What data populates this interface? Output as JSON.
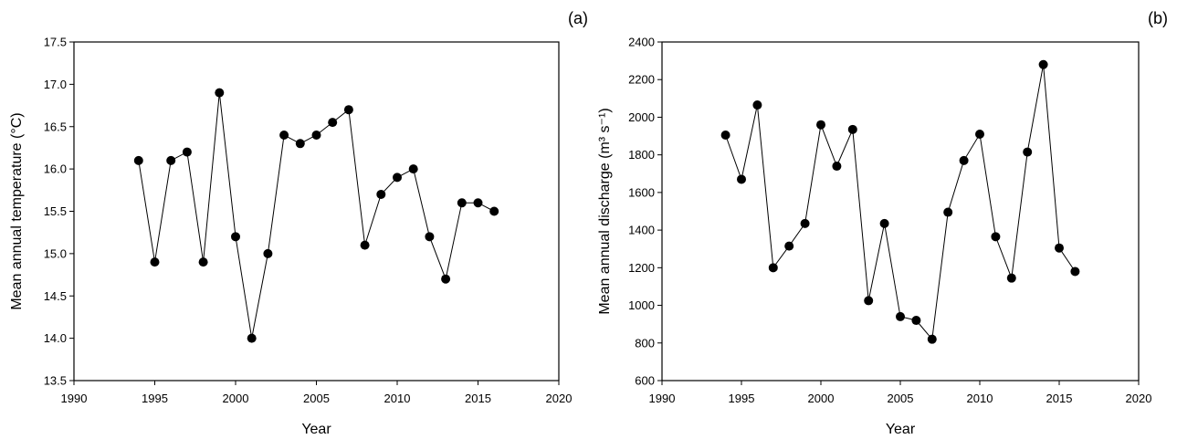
{
  "chart_data": [
    {
      "type": "line",
      "panel_label": "(a)",
      "xlabel": "Year",
      "ylabel": "Mean annual temperature (°C)",
      "xlim": [
        1990,
        2020
      ],
      "ylim": [
        13.5,
        17.5
      ],
      "xticks": [
        1990,
        1995,
        2000,
        2005,
        2010,
        2015,
        2020
      ],
      "yticks": [
        "13.5",
        "14.0",
        "14.5",
        "15.0",
        "15.5",
        "16.0",
        "16.5",
        "17.0",
        "17.5"
      ],
      "grid": false,
      "legend": "none",
      "marker": "filled-circle",
      "x": [
        1994,
        1995,
        1996,
        1997,
        1998,
        1999,
        2000,
        2001,
        2002,
        2003,
        2004,
        2005,
        2006,
        2007,
        2008,
        2009,
        2010,
        2011,
        2012,
        2013,
        2014,
        2015,
        2016
      ],
      "y": [
        16.1,
        14.9,
        16.1,
        16.2,
        14.9,
        16.9,
        15.2,
        14.0,
        15.0,
        16.4,
        16.3,
        16.4,
        16.55,
        16.7,
        15.1,
        15.7,
        15.9,
        16.0,
        15.2,
        14.7,
        15.6,
        15.6,
        15.5
      ]
    },
    {
      "type": "line",
      "panel_label": "(b)",
      "xlabel": "Year",
      "ylabel": "Mean annual discharge (m³ s⁻¹)",
      "xlim": [
        1990,
        2020
      ],
      "ylim": [
        600,
        2400
      ],
      "xticks": [
        1990,
        1995,
        2000,
        2005,
        2010,
        2015,
        2020
      ],
      "yticks": [
        "600",
        "800",
        "1000",
        "1200",
        "1400",
        "1600",
        "1800",
        "2000",
        "2200",
        "2400"
      ],
      "grid": false,
      "legend": "none",
      "marker": "filled-circle",
      "x": [
        1994,
        1995,
        1996,
        1997,
        1998,
        1999,
        2000,
        2001,
        2002,
        2003,
        2004,
        2005,
        2006,
        2007,
        2008,
        2009,
        2010,
        2011,
        2012,
        2013,
        2014,
        2015,
        2016
      ],
      "y": [
        1905,
        1670,
        2065,
        1200,
        1315,
        1435,
        1960,
        1740,
        1935,
        1025,
        1435,
        940,
        920,
        820,
        1495,
        1770,
        1910,
        1365,
        1145,
        1815,
        2280,
        1305,
        1180
      ]
    }
  ]
}
